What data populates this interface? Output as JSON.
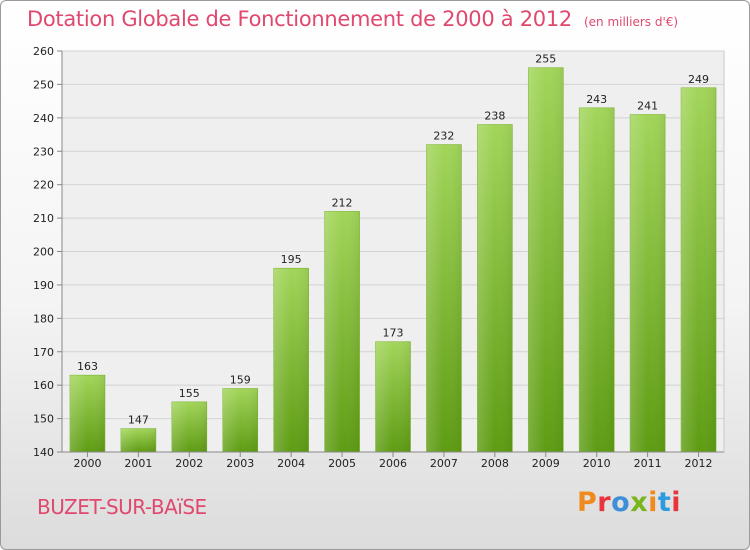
{
  "header": {
    "title": "Dotation Globale de Fonctionnement de 2000 à 2012",
    "unit": "(en milliers d'€)"
  },
  "footer": {
    "commune": "BUZET-SUR-BAïSE",
    "logo": "Proxiti"
  },
  "colors": {
    "title": "#e0486e",
    "bar_top": "#a2d55a",
    "bar_bottom": "#5e9c13",
    "logo_letters": [
      "#f08a1e",
      "#e8343a",
      "#3f8fd8",
      "#79b51c",
      "#f08a1e",
      "#2e9be0",
      "#e8343a"
    ]
  },
  "chart_data": {
    "type": "bar",
    "title": "Dotation Globale de Fonctionnement de 2000 à 2012",
    "xlabel": "",
    "ylabel": "",
    "categories": [
      "2000",
      "2001",
      "2002",
      "2003",
      "2004",
      "2005",
      "2006",
      "2007",
      "2008",
      "2009",
      "2010",
      "2011",
      "2012"
    ],
    "values": [
      163,
      147,
      155,
      159,
      195,
      212,
      173,
      232,
      238,
      255,
      243,
      241,
      249
    ],
    "ylim": [
      140,
      260
    ],
    "yticks": [
      140,
      150,
      160,
      170,
      180,
      190,
      200,
      210,
      220,
      230,
      240,
      250,
      260
    ],
    "grid": true
  }
}
